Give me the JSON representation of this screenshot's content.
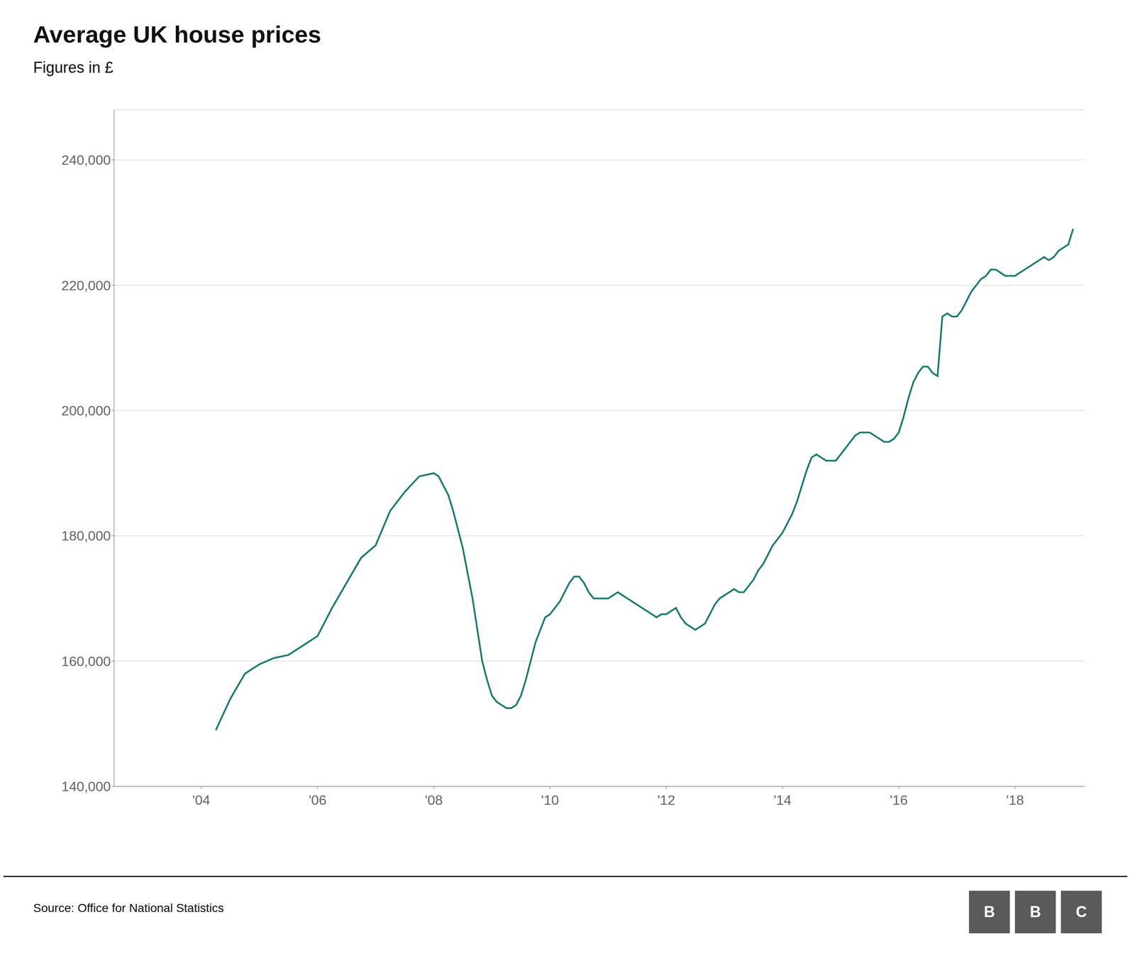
{
  "chart_data": {
    "type": "line",
    "title": "Average UK house prices",
    "subtitle": "Figures in £",
    "source": "Source: Office for National Statistics",
    "annotations": [
      "B",
      "B",
      "C"
    ],
    "color": "#1a7a6e",
    "grid": true,
    "xlim": [
      2002.5,
      2019.2
    ],
    "xticks": [
      {
        "value": 2004,
        "label": "'04"
      },
      {
        "value": 2006,
        "label": "'06"
      },
      {
        "value": 2008,
        "label": "'08"
      },
      {
        "value": 2010,
        "label": "'10"
      },
      {
        "value": 2012,
        "label": "'12"
      },
      {
        "value": 2014,
        "label": "'14"
      },
      {
        "value": 2016,
        "label": "'16"
      },
      {
        "value": 2018,
        "label": "'18"
      }
    ],
    "ylim": [
      140000,
      248000
    ],
    "yticks": [
      {
        "value": 140000,
        "label": "140,000"
      },
      {
        "value": 160000,
        "label": "160,000"
      },
      {
        "value": 180000,
        "label": "180,000"
      },
      {
        "value": 200000,
        "label": "200,000"
      },
      {
        "value": 220000,
        "label": "220,000"
      },
      {
        "value": 240000,
        "label": "240,000"
      }
    ],
    "x": [
      2004.25,
      2004.5,
      2004.75,
      2005.0,
      2005.25,
      2005.5,
      2005.75,
      2006.0,
      2006.25,
      2006.5,
      2006.75,
      2007.0,
      2007.25,
      2007.5,
      2007.75,
      2008.0,
      2008.083,
      2008.167,
      2008.25,
      2008.333,
      2008.417,
      2008.5,
      2008.583,
      2008.667,
      2008.75,
      2008.833,
      2008.917,
      2009.0,
      2009.083,
      2009.167,
      2009.25,
      2009.333,
      2009.417,
      2009.5,
      2009.583,
      2009.667,
      2009.75,
      2009.833,
      2009.917,
      2010.0,
      2010.083,
      2010.167,
      2010.25,
      2010.333,
      2010.417,
      2010.5,
      2010.583,
      2010.667,
      2010.75,
      2010.833,
      2010.917,
      2011.0,
      2011.083,
      2011.167,
      2011.25,
      2011.333,
      2011.417,
      2011.5,
      2011.583,
      2011.667,
      2011.75,
      2011.833,
      2011.917,
      2012.0,
      2012.083,
      2012.167,
      2012.25,
      2012.333,
      2012.417,
      2012.5,
      2012.583,
      2012.667,
      2012.75,
      2012.833,
      2012.917,
      2013.0,
      2013.083,
      2013.167,
      2013.25,
      2013.333,
      2013.417,
      2013.5,
      2013.583,
      2013.667,
      2013.75,
      2013.833,
      2013.917,
      2014.0,
      2014.083,
      2014.167,
      2014.25,
      2014.333,
      2014.417,
      2014.5,
      2014.583,
      2014.667,
      2014.75,
      2014.833,
      2014.917,
      2015.0,
      2015.083,
      2015.167,
      2015.25,
      2015.333,
      2015.417,
      2015.5,
      2015.583,
      2015.667,
      2015.75,
      2015.833,
      2015.917,
      2016.0,
      2016.083,
      2016.167,
      2016.25,
      2016.333,
      2016.417,
      2016.5,
      2016.583,
      2016.667,
      2016.75,
      2016.833,
      2016.917,
      2017.0,
      2017.083,
      2017.167,
      2017.25,
      2017.333,
      2017.417,
      2017.5,
      2017.583,
      2017.667,
      2017.75,
      2017.833,
      2017.917,
      2018.0,
      2018.083,
      2018.167,
      2018.25,
      2018.333,
      2018.417,
      2018.5,
      2018.583,
      2018.667,
      2018.75,
      2018.833,
      2018.917,
      2019.0
    ],
    "values": [
      149000,
      154000,
      158000,
      159500,
      160500,
      161000,
      162500,
      164000,
      168500,
      172500,
      176500,
      178500,
      184000,
      187000,
      189500,
      190000,
      189500,
      188000,
      186500,
      184000,
      181000,
      178000,
      174000,
      170000,
      165000,
      160000,
      157000,
      154500,
      153500,
      153000,
      152500,
      152500,
      153000,
      154500,
      157000,
      160000,
      163000,
      165000,
      167000,
      167500,
      168500,
      169500,
      171000,
      172500,
      173500,
      173500,
      172500,
      171000,
      170000,
      170000,
      170000,
      170000,
      170500,
      171000,
      170500,
      170000,
      169500,
      169000,
      168500,
      168000,
      167500,
      167000,
      167500,
      167500,
      168000,
      168500,
      167000,
      166000,
      165500,
      165000,
      165500,
      166000,
      167500,
      169000,
      170000,
      170500,
      171000,
      171500,
      171000,
      171000,
      172000,
      173000,
      174500,
      175500,
      177000,
      178500,
      179500,
      180500,
      182000,
      183500,
      185500,
      188000,
      190500,
      192500,
      193000,
      192500,
      192000,
      192000,
      192000,
      193000,
      194000,
      195000,
      196000,
      196500,
      196500,
      196500,
      196000,
      195500,
      195000,
      195000,
      195500,
      196500,
      199000,
      202000,
      204500,
      206000,
      207000,
      207000,
      206000,
      205500,
      215000,
      215500,
      215000,
      215000,
      216000,
      217500,
      219000,
      220000,
      221000,
      221500,
      222500,
      222500,
      222000,
      221500,
      221500,
      221500,
      222000,
      222500,
      223000,
      223500,
      224000,
      224500,
      224000,
      224500,
      225500,
      226000,
      226500,
      229000
    ]
  }
}
